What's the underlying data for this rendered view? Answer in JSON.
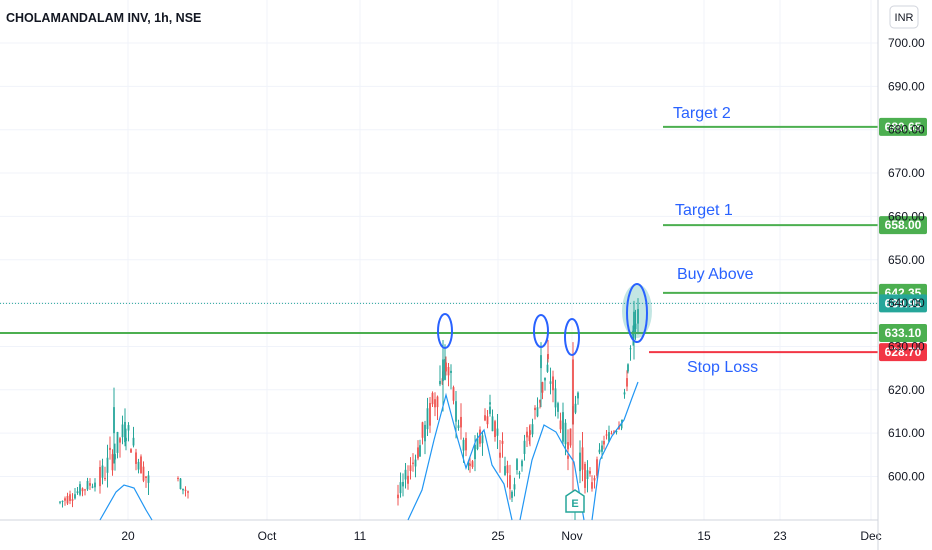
{
  "chart_data": {
    "type": "candlestick",
    "title": "CHOLAMANDALAM INV, 1h, NSE",
    "currency": "INR",
    "y_ticks": [
      600,
      610,
      620,
      630,
      640,
      650,
      660,
      670,
      680,
      690,
      700
    ],
    "ylim": [
      591,
      703
    ],
    "x_ticks": [
      "20",
      "Oct",
      "11",
      "25",
      "Nov",
      "15",
      "23",
      "Dec"
    ],
    "grid": true,
    "levels": [
      {
        "name": "Target 2",
        "value": 680.65,
        "label": "680.65",
        "color": "#4caf50"
      },
      {
        "name": "Target 1",
        "value": 658.0,
        "label": "658.00",
        "color": "#4caf50"
      },
      {
        "name": "Buy Above",
        "value": 642.35,
        "label": "642.35",
        "color": "#4caf50"
      },
      {
        "name": "",
        "value": 633.1,
        "label": "633.10",
        "color": "#4caf50"
      },
      {
        "name": "Stop Loss",
        "value": 628.7,
        "label": "628.70",
        "color": "#f23645"
      }
    ],
    "last_price": {
      "value": 639.95,
      "label": "639.95",
      "color": "#26a69a"
    },
    "earnings_marker": "E",
    "colors": {
      "up": "#26a69a",
      "down": "#ef5350",
      "ma": "#2196f3",
      "annotation": "#2962ff"
    }
  }
}
